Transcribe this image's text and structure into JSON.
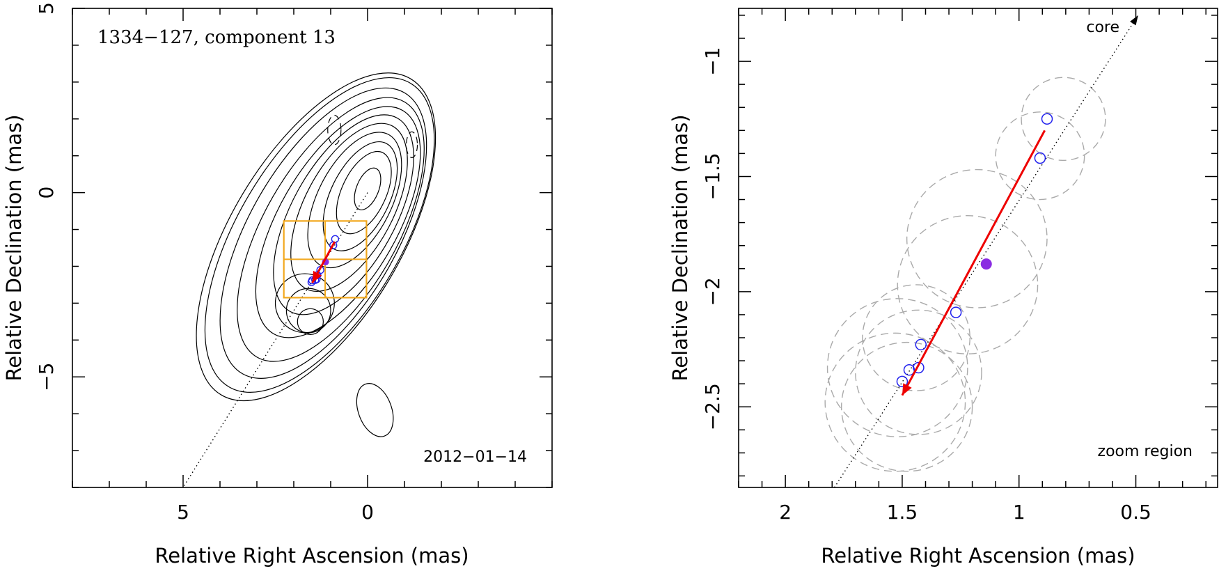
{
  "chart_data": [
    {
      "type": "scatter",
      "panel": "left",
      "title": "1334−127, component 13",
      "annotation": "2012−01−14",
      "xlabel": "Relative Right Ascension (mas)",
      "ylabel": "Relative Declination (mas)",
      "xlim": [
        8,
        -5
      ],
      "ylim": [
        -8,
        5
      ],
      "x_ticks": [
        {
          "v": 5,
          "label": "5"
        },
        {
          "v": 0,
          "label": "0"
        }
      ],
      "y_ticks": [
        {
          "v": 5,
          "label": "5"
        },
        {
          "v": 0,
          "label": "0"
        },
        {
          "v": -5,
          "label": "−5"
        }
      ],
      "grid": false,
      "component_positions": {
        "x": [
          0.88,
          0.93,
          1.28,
          1.36,
          1.38,
          1.42,
          1.5,
          1.52
        ],
        "y": [
          -1.26,
          -1.43,
          -2.1,
          -2.24,
          -2.35,
          -2.37,
          -2.38,
          -2.43
        ]
      },
      "reference_epoch_position": {
        "x": 1.14,
        "y": -1.88
      },
      "motion_vector": {
        "from": [
          0.89,
          -1.33
        ],
        "to": [
          1.5,
          -2.45
        ]
      },
      "core_direction_line": {
        "from": [
          0,
          0
        ],
        "to": [
          5,
          -8
        ]
      },
      "zoom_region": {
        "x": [
          0.03,
          2.27
        ],
        "y": [
          -2.85,
          -0.77
        ]
      },
      "contours": [
        {
          "cx": 0.0,
          "cy": 0.1,
          "rx": 0.3,
          "ry": 0.6,
          "rot": 22,
          "dashed": false
        },
        {
          "cx": 0.1,
          "cy": 0.0,
          "rx": 0.6,
          "ry": 1.2,
          "rot": 25,
          "dashed": false
        },
        {
          "cx": 0.2,
          "cy": -0.1,
          "rx": 0.8,
          "ry": 1.6,
          "rot": 26,
          "dashed": false
        },
        {
          "cx": 0.35,
          "cy": -0.2,
          "rx": 1.0,
          "ry": 2.0,
          "rot": 27,
          "dashed": false
        },
        {
          "cx": 0.5,
          "cy": -0.4,
          "rx": 1.2,
          "ry": 2.5,
          "rot": 28,
          "dashed": false
        },
        {
          "cx": 0.65,
          "cy": -0.6,
          "rx": 1.4,
          "ry": 3.0,
          "rot": 29,
          "dashed": false
        },
        {
          "cx": 0.8,
          "cy": -0.8,
          "rx": 1.6,
          "ry": 3.5,
          "rot": 30,
          "dashed": false
        },
        {
          "cx": 1.0,
          "cy": -1.0,
          "rx": 1.8,
          "ry": 4.0,
          "rot": 30,
          "dashed": false
        },
        {
          "cx": 1.2,
          "cy": -1.1,
          "rx": 2.0,
          "ry": 4.4,
          "rot": 30,
          "dashed": false
        },
        {
          "cx": 1.3,
          "cy": -1.15,
          "rx": 2.2,
          "ry": 4.8,
          "rot": 31,
          "dashed": false
        },
        {
          "cx": 1.4,
          "cy": -1.2,
          "rx": 2.3,
          "ry": 5.0,
          "rot": 31,
          "dashed": false
        },
        {
          "cx": 1.55,
          "cy": -3.5,
          "rx": 0.35,
          "ry": 0.35,
          "rot": 0,
          "dashed": false
        },
        {
          "cx": 1.6,
          "cy": -3.2,
          "rx": 0.6,
          "ry": 0.6,
          "rot": 0,
          "dashed": false
        },
        {
          "cx": 1.7,
          "cy": -3.0,
          "rx": 0.8,
          "ry": 0.8,
          "rot": 0,
          "dashed": false
        },
        {
          "cx": -0.2,
          "cy": -5.9,
          "rx": 0.45,
          "ry": 0.75,
          "rot": -20,
          "dashed": false
        },
        {
          "cx": 0.9,
          "cy": 1.7,
          "rx": 0.18,
          "ry": 0.4,
          "rot": 0,
          "dashed": true
        },
        {
          "cx": -1.2,
          "cy": 1.3,
          "rx": 0.15,
          "ry": 0.35,
          "rot": 0,
          "dashed": true
        }
      ]
    },
    {
      "type": "scatter",
      "panel": "right",
      "annotation": "zoom region",
      "core_label": "core",
      "xlabel": "Relative Right Ascension (mas)",
      "ylabel": "Relative Declination (mas)",
      "xlim": [
        2.2,
        0.15
      ],
      "ylim": [
        -2.85,
        -0.77
      ],
      "x_ticks": [
        {
          "v": 2,
          "label": "2"
        },
        {
          "v": 1.5,
          "label": "1.5"
        },
        {
          "v": 1,
          "label": "1"
        },
        {
          "v": 0.5,
          "label": "0.5"
        }
      ],
      "y_ticks": [
        {
          "v": -1,
          "label": "−1"
        },
        {
          "v": -1.5,
          "label": "−1.5"
        },
        {
          "v": -2,
          "label": "−2"
        },
        {
          "v": -2.5,
          "label": "−2.5"
        }
      ],
      "grid": false,
      "component_positions": {
        "x": [
          0.88,
          0.91,
          1.27,
          1.42,
          1.43,
          1.47,
          1.5
        ],
        "y": [
          -1.25,
          -1.42,
          -2.09,
          -2.23,
          -2.33,
          -2.34,
          -2.39
        ]
      },
      "reference_epoch_position": {
        "x": 1.14,
        "y": -1.88
      },
      "motion_vector": {
        "from": [
          0.89,
          -1.3
        ],
        "to": [
          1.5,
          -2.45
        ]
      },
      "core_direction_line": {
        "from": [
          1.79,
          -2.85
        ],
        "to": [
          0.49,
          -0.8
        ]
      },
      "component_sizes": [
        {
          "cx": 0.81,
          "cy": -1.25,
          "r": 0.18
        },
        {
          "cx": 0.91,
          "cy": -1.41,
          "r": 0.19
        },
        {
          "cx": 1.18,
          "cy": -1.77,
          "r": 0.3
        },
        {
          "cx": 1.22,
          "cy": -1.97,
          "r": 0.3
        },
        {
          "cx": 1.44,
          "cy": -2.2,
          "r": 0.23
        },
        {
          "cx": 1.43,
          "cy": -2.35,
          "r": 0.27
        },
        {
          "cx": 1.52,
          "cy": -2.33,
          "r": 0.3
        },
        {
          "cx": 1.53,
          "cy": -2.48,
          "r": 0.3
        },
        {
          "cx": 1.48,
          "cy": -2.5,
          "r": 0.28
        }
      ]
    }
  ],
  "style": {
    "component_color": "#2222ee",
    "reference_color": "#8a2be2",
    "arrow_color": "#ee0000",
    "box_color": "#f2a81d",
    "size_circle_color": "#aaaaaa"
  }
}
